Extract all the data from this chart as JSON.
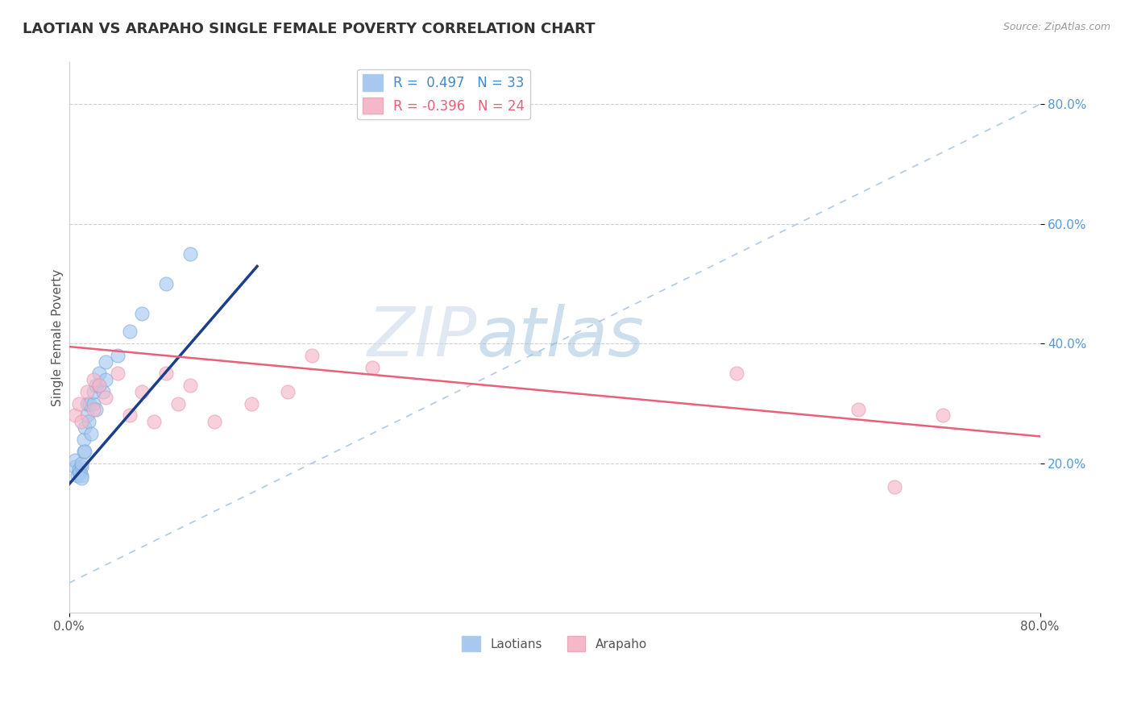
{
  "title": "LAOTIAN VS ARAPAHO SINGLE FEMALE POVERTY CORRELATION CHART",
  "source": "Source: ZipAtlas.com",
  "ylabel": "Single Female Poverty",
  "xlim": [
    0.0,
    0.8
  ],
  "ylim": [
    -0.05,
    0.87
  ],
  "background_color": "#FFFFFF",
  "watermark_zip": "ZIP",
  "watermark_atlas": "atlas",
  "laotian_color": "#A8C8F0",
  "laotian_edge_color": "#7AAAD8",
  "arapaho_color": "#F5B8C8",
  "arapaho_edge_color": "#E898B0",
  "laotian_line_color": "#1B3F8B",
  "arapaho_line_color": "#E8607A",
  "diagonal_color": "#B0C8E8",
  "grid_color": "#CCCCCC",
  "ytick_color": "#5599DD",
  "xtick_color": "#555555",
  "ylabel_color": "#555555",
  "legend_blue_text_color": "#4488CC",
  "legend_pink_text_color": "#E8607A",
  "laotian_x": [
    0.005,
    0.005,
    0.007,
    0.008,
    0.008,
    0.009,
    0.01,
    0.01,
    0.01,
    0.01,
    0.012,
    0.012,
    0.013,
    0.013,
    0.015,
    0.015,
    0.016,
    0.017,
    0.018,
    0.02,
    0.02,
    0.022,
    0.022,
    0.025,
    0.025,
    0.028,
    0.03,
    0.03,
    0.04,
    0.05,
    0.06,
    0.08,
    0.1
  ],
  "laotian_y": [
    0.195,
    0.205,
    0.18,
    0.185,
    0.19,
    0.185,
    0.195,
    0.2,
    0.18,
    0.175,
    0.22,
    0.24,
    0.26,
    0.22,
    0.28,
    0.3,
    0.27,
    0.3,
    0.25,
    0.3,
    0.32,
    0.29,
    0.33,
    0.35,
    0.33,
    0.32,
    0.37,
    0.34,
    0.38,
    0.42,
    0.45,
    0.5,
    0.55
  ],
  "arapaho_x": [
    0.005,
    0.008,
    0.01,
    0.015,
    0.02,
    0.02,
    0.025,
    0.03,
    0.04,
    0.05,
    0.06,
    0.07,
    0.08,
    0.09,
    0.1,
    0.12,
    0.15,
    0.18,
    0.2,
    0.25,
    0.55,
    0.65,
    0.68,
    0.72
  ],
  "arapaho_y": [
    0.28,
    0.3,
    0.27,
    0.32,
    0.34,
    0.29,
    0.33,
    0.31,
    0.35,
    0.28,
    0.32,
    0.27,
    0.35,
    0.3,
    0.33,
    0.27,
    0.3,
    0.32,
    0.38,
    0.36,
    0.35,
    0.29,
    0.16,
    0.28
  ],
  "laotian_line_x": [
    0.0,
    0.155
  ],
  "laotian_line_y_intercept": 0.165,
  "laotian_line_slope": 2.35,
  "arapaho_line_x": [
    0.0,
    0.8
  ],
  "arapaho_line_y_at_0": 0.395,
  "arapaho_line_y_at_80": 0.245,
  "diag_line_x": [
    0.0,
    0.8
  ],
  "diag_line_y": [
    0.0,
    0.8
  ]
}
